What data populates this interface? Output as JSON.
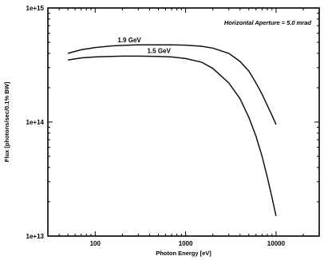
{
  "chart_data": {
    "type": "line",
    "title": "",
    "xlabel": "Photon Energy  [eV]",
    "ylabel": "Flux  [photons/sec/0.1% BW]",
    "x_scale": "log",
    "y_scale": "log",
    "xlim": [
      30,
      30000
    ],
    "ylim": [
      10000000000000.0,
      1000000000000000.0
    ],
    "x_ticks": [
      100,
      1000,
      10000
    ],
    "x_tick_labels": [
      "100",
      "1000",
      "10000"
    ],
    "y_ticks": [
      10000000000000.0,
      100000000000000.0,
      1000000000000000.0
    ],
    "y_tick_labels": [
      "1e+13",
      "1e+14",
      "1e+15"
    ],
    "annotation": "Horizontal Aperture = 5.0 mrad",
    "grid": false,
    "series": [
      {
        "name": "1.9 GeV",
        "x": [
          50,
          70,
          100,
          150,
          200,
          300,
          500,
          700,
          1000,
          1500,
          2000,
          3000,
          4000,
          5000,
          6000,
          7000,
          8000,
          9000,
          10000
        ],
        "y": [
          400000000000000.0,
          430000000000000.0,
          450000000000000.0,
          465000000000000.0,
          470000000000000.0,
          475000000000000.0,
          475000000000000.0,
          475000000000000.0,
          472000000000000.0,
          462000000000000.0,
          445000000000000.0,
          400000000000000.0,
          340000000000000.0,
          280000000000000.0,
          220000000000000.0,
          175000000000000.0,
          140000000000000.0,
          115000000000000.0,
          95000000000000.0
        ]
      },
      {
        "name": "1.5 GeV",
        "x": [
          50,
          70,
          100,
          150,
          200,
          300,
          500,
          700,
          1000,
          1500,
          2000,
          3000,
          4000,
          5000,
          6000,
          7000,
          8000,
          9000,
          10000
        ],
        "y": [
          350000000000000.0,
          365000000000000.0,
          372000000000000.0,
          376000000000000.0,
          378000000000000.0,
          378000000000000.0,
          376000000000000.0,
          372000000000000.0,
          360000000000000.0,
          335000000000000.0,
          295000000000000.0,
          220000000000000.0,
          160000000000000.0,
          110000000000000.0,
          75000000000000.0,
          50000000000000.0,
          33000000000000.0,
          22000000000000.0,
          15000000000000.0
        ]
      }
    ]
  }
}
